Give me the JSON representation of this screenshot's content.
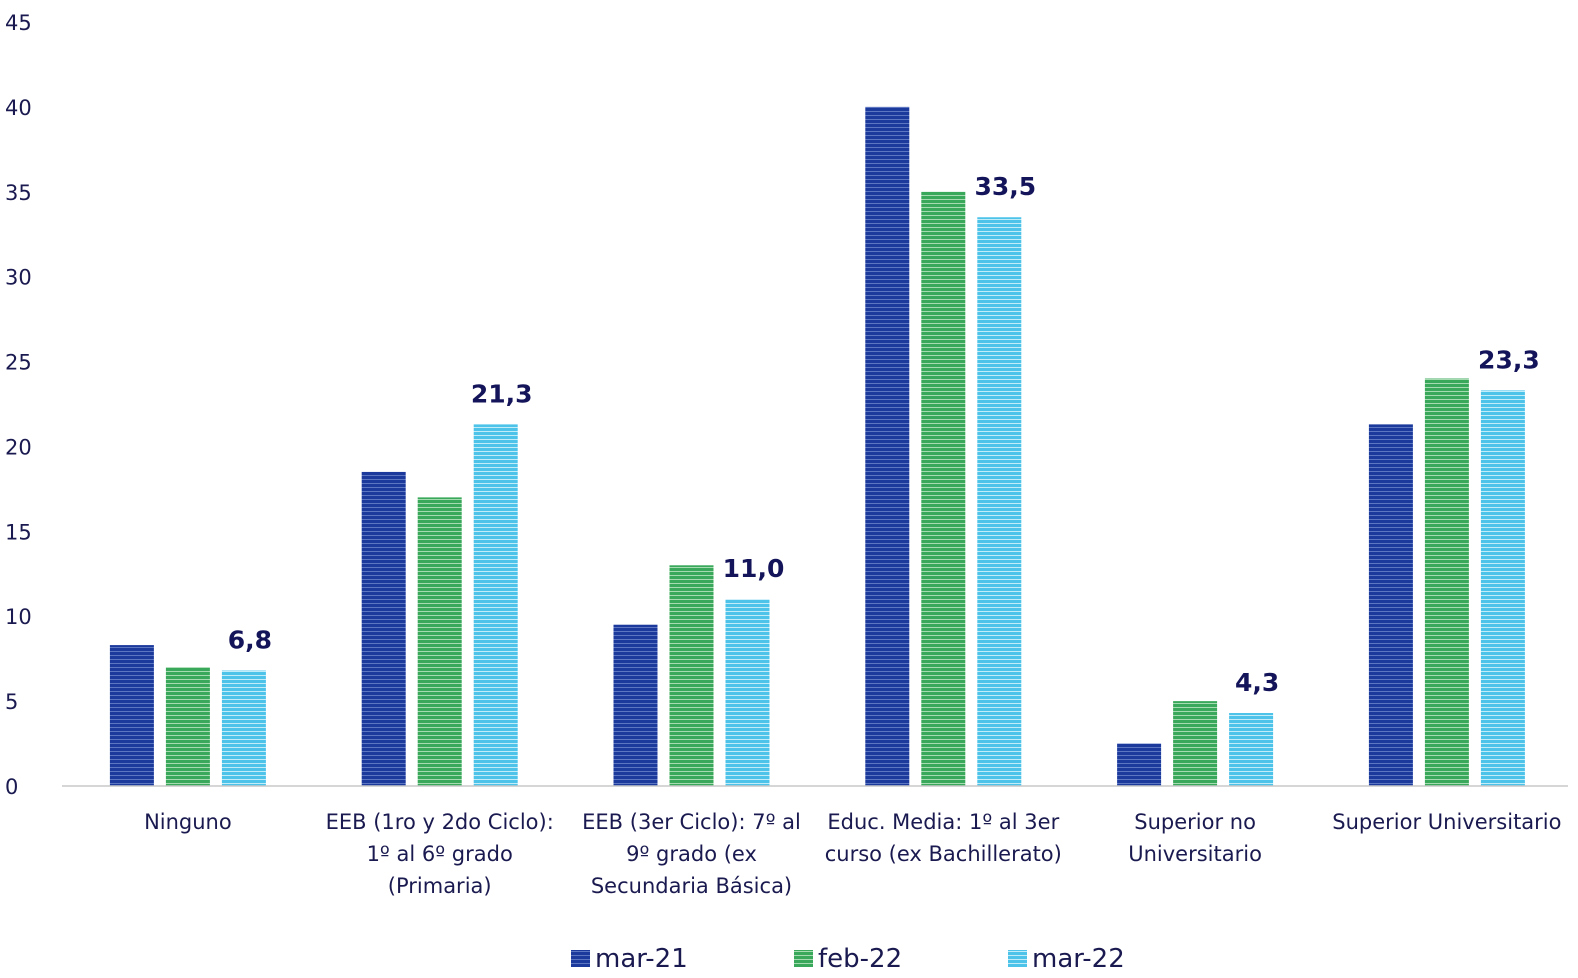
{
  "chart_data": {
    "type": "bar",
    "categories": [
      [
        "Ninguno"
      ],
      [
        "EEB (1ro y 2do Ciclo):",
        "1º al 6º grado",
        "(Primaria)"
      ],
      [
        "EEB (3er Ciclo): 7º al",
        "9º grado (ex",
        "Secundaria Básica)"
      ],
      [
        "Educ. Media: 1º al 3er",
        "curso (ex Bachillerato)"
      ],
      [
        "Superior no",
        "Universitario"
      ],
      [
        "Superior Universitario"
      ]
    ],
    "series": [
      {
        "name": "mar-21",
        "color": "#1c3a9c",
        "values": [
          8.3,
          18.5,
          9.5,
          40.0,
          2.5,
          21.3
        ]
      },
      {
        "name": "feb-22",
        "color": "#3aa85a",
        "values": [
          7.0,
          17.0,
          13.0,
          35.0,
          5.0,
          24.0
        ]
      },
      {
        "name": "mar-22",
        "color": "#4dc3ea",
        "values": [
          6.8,
          21.3,
          11.0,
          33.5,
          4.3,
          23.3
        ]
      }
    ],
    "data_labels": {
      "series_index": 2,
      "texts": [
        "6,8",
        "21,3",
        "11,0",
        "33,5",
        "4,3",
        "23,3"
      ]
    },
    "yticks": [
      "0",
      "5",
      "10",
      "15",
      "20",
      "25",
      "30",
      "35",
      "40",
      "45"
    ],
    "ylim": [
      0,
      45
    ],
    "grid": false,
    "legend_position": "bottom",
    "title": "",
    "xlabel": "",
    "ylabel": ""
  }
}
